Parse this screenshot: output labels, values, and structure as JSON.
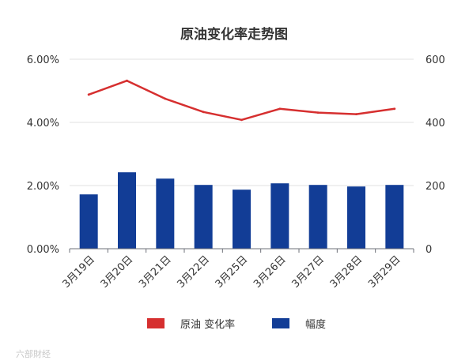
{
  "chart_data": {
    "type": "bar",
    "title": "原油变化率走势图",
    "categories": [
      "3月19日",
      "3月20日",
      "3月21日",
      "3月22日",
      "3月25日",
      "3月26日",
      "3月27日",
      "3月28日",
      "3月29日"
    ],
    "series": [
      {
        "name": "原油 变化率",
        "type": "line",
        "axis": "left",
        "color": "#d62f2f",
        "values": [
          0.0488,
          0.0532,
          0.0475,
          0.0433,
          0.0408,
          0.0443,
          0.0431,
          0.0426,
          0.0443
        ]
      },
      {
        "name": "幅度",
        "type": "bar",
        "axis": "right",
        "color": "#123d96",
        "values": [
          172,
          242,
          222,
          202,
          187,
          207,
          202,
          197,
          202
        ]
      }
    ],
    "y_left": {
      "ylim": [
        0,
        0.06
      ],
      "ticks": [
        "0.00%",
        "2.00%",
        "4.00%",
        "6.00%"
      ]
    },
    "y_right": {
      "ylim": [
        0,
        600
      ],
      "ticks": [
        "0",
        "200",
        "400",
        "600"
      ]
    },
    "grid": true,
    "legend": "bottom"
  },
  "watermark": "六部財经"
}
